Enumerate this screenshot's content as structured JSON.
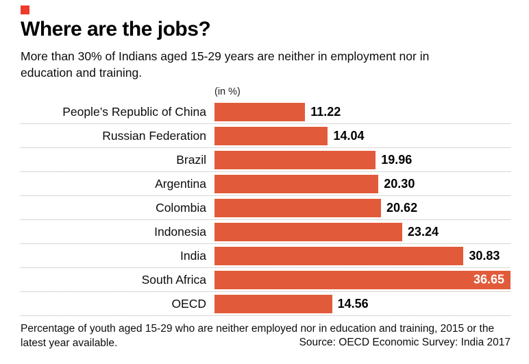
{
  "colors": {
    "brand_red": "#ee3a2c",
    "bar": "#e15b3b",
    "value_inside_text": "#ffffff"
  },
  "header": {
    "title": "Where are the jobs?",
    "subtitle": "More than 30% of Indians aged 15-29 years are neither in employment nor in education and training.",
    "unit_label": "(in %)"
  },
  "chart_data": {
    "type": "bar",
    "orientation": "horizontal",
    "title": "Where are the jobs?",
    "unit": "%",
    "categories": [
      "People’s Republic of China",
      "Russian Federation",
      "Brazil",
      "Argentina",
      "Colombia",
      "Indonesia",
      "India",
      "South Africa",
      "OECD"
    ],
    "values": [
      11.22,
      14.04,
      19.96,
      20.3,
      20.62,
      23.24,
      30.83,
      36.65,
      14.56
    ],
    "value_labels": [
      "11.22",
      "14.04",
      "19.96",
      "20.30",
      "20.62",
      "23.24",
      "30.83",
      "36.65",
      "14.56"
    ],
    "xlim": [
      0,
      36.65
    ],
    "grid": "dotted-row-separators",
    "legend": "none",
    "value_label_inside_bar": [
      "South Africa"
    ]
  },
  "footer": {
    "note": "Percentage of youth aged 15-29 who are neither employed nor in education and training, 2015 or the latest year available.",
    "source": "Source: OECD Economic Survey: India 2017"
  }
}
